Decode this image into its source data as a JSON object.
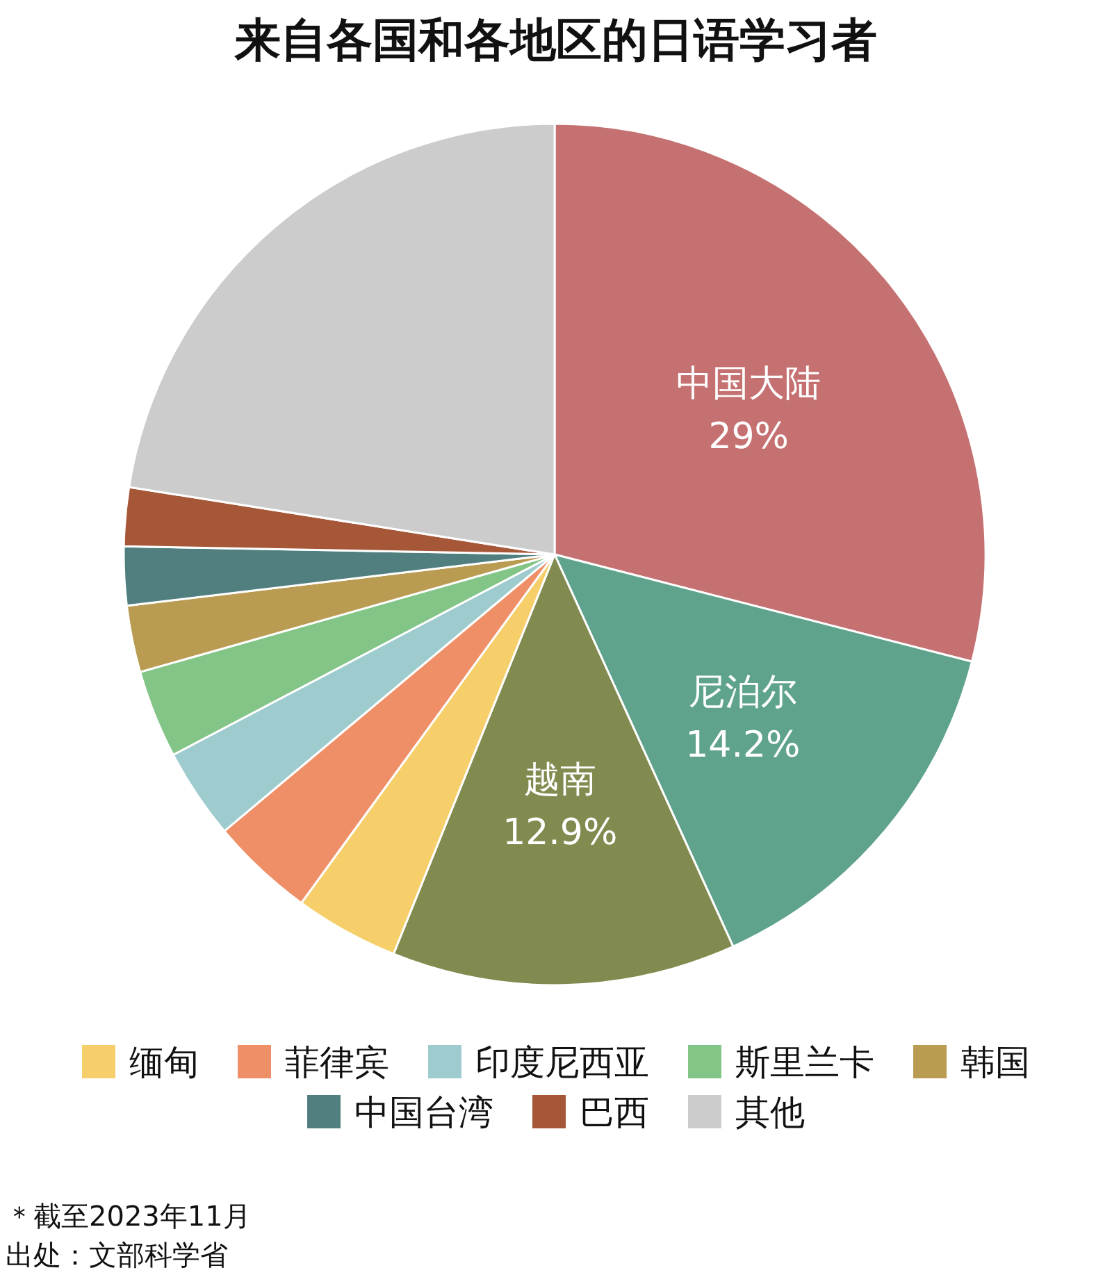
{
  "chart_data": {
    "type": "pie",
    "title": "来自各国和各地区的日语学习者",
    "categories": [
      "中国大陆",
      "尼泊尔",
      "越南",
      "缅甸",
      "菲律宾",
      "印度尼西亚",
      "斯里兰卡",
      "韩国",
      "中国台湾",
      "巴西",
      "其他"
    ],
    "values": [
      29,
      14.2,
      12.9,
      3.9,
      3.9,
      3.4,
      3.3,
      2.5,
      2.2,
      2.2,
      22.5
    ],
    "value_labels": [
      "29%",
      "14.2%",
      "12.9%",
      null,
      null,
      null,
      null,
      null,
      null,
      null,
      null
    ],
    "colors": [
      "#c57172",
      "#5fa38c",
      "#828b4f",
      "#f6cf6a",
      "#ef8f68",
      "#9ecbce",
      "#83c487",
      "#b99c51",
      "#517f7f",
      "#a65738",
      "#cccccc"
    ],
    "legend": "bottom",
    "annotations": [
      "＊截至2023年11月",
      "出处：文部科学省"
    ]
  }
}
